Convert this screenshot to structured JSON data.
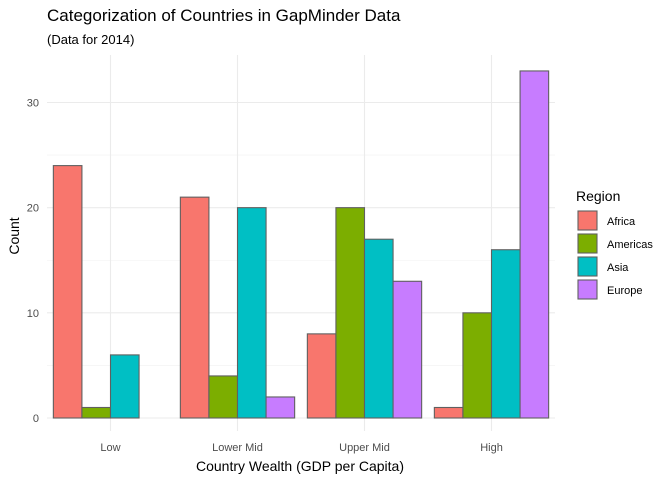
{
  "chart_data": {
    "type": "bar",
    "title": "Categorization of Countries in GapMinder Data",
    "subtitle": "(Data for 2014)",
    "xlabel": "Country Wealth (GDP per Capita)",
    "ylabel": "Count",
    "categories": [
      "Low",
      "Lower Mid",
      "Upper Mid",
      "High"
    ],
    "series": [
      {
        "name": "Africa",
        "color": "#F8766D",
        "values": [
          24,
          21,
          8,
          1
        ]
      },
      {
        "name": "Americas",
        "color": "#7CAE00",
        "values": [
          1,
          4,
          20,
          10
        ]
      },
      {
        "name": "Asia",
        "color": "#00BFC4",
        "values": [
          6,
          20,
          17,
          16
        ]
      },
      {
        "name": "Europe",
        "color": "#C77CFF",
        "values": [
          null,
          2,
          13,
          33
        ]
      }
    ],
    "ylim": [
      0,
      34
    ],
    "yticks": [
      0,
      10,
      20,
      30
    ],
    "grid": true,
    "legend": {
      "title": "Region",
      "position": "right"
    }
  }
}
